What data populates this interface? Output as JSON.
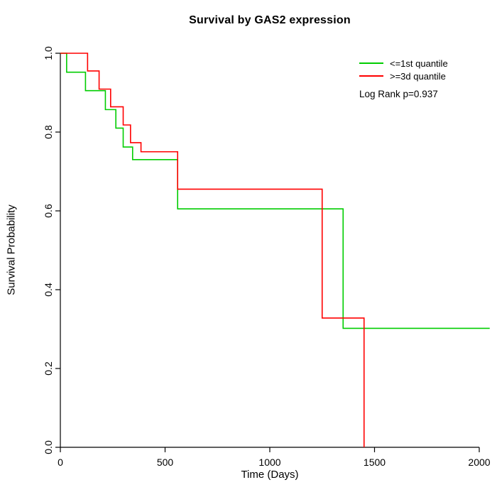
{
  "title": "Survival by GAS2 expression",
  "axes": {
    "xlabel": "Time (Days)",
    "ylabel": "Survival Probability"
  },
  "legend": {
    "items": [
      {
        "label": "<=1st quantile",
        "color": "#00CD00"
      },
      {
        "label": ">=3d quantile",
        "color": "#FF0000"
      }
    ],
    "note": "Log Rank p=0.937"
  },
  "chart_data": {
    "type": "line",
    "subtype": "kaplan-meier-step",
    "title": "Survival by GAS2 expression",
    "xlabel": "Time (Days)",
    "ylabel": "Survival Probability",
    "xlim": [
      0,
      2000
    ],
    "ylim": [
      0.0,
      1.0
    ],
    "x_ticks": [
      0,
      500,
      1000,
      1500,
      2000
    ],
    "y_ticks": [
      0.0,
      0.2,
      0.4,
      0.6,
      0.8,
      1.0
    ],
    "grid": false,
    "legend_position": "top-right",
    "annotation": "Log Rank p=0.937",
    "series": [
      {
        "name": "<=1st quantile",
        "color": "#00CD00",
        "steps": [
          [
            0,
            1.0
          ],
          [
            30,
            0.952
          ],
          [
            120,
            0.905
          ],
          [
            215,
            0.857
          ],
          [
            265,
            0.81
          ],
          [
            300,
            0.762
          ],
          [
            345,
            0.73
          ],
          [
            560,
            0.605
          ],
          [
            1350,
            0.302
          ],
          [
            2050,
            0.302
          ]
        ]
      },
      {
        "name": ">=3d quantile",
        "color": "#FF0000",
        "steps": [
          [
            0,
            1.0
          ],
          [
            130,
            0.955
          ],
          [
            185,
            0.909
          ],
          [
            240,
            0.864
          ],
          [
            300,
            0.818
          ],
          [
            335,
            0.773
          ],
          [
            385,
            0.75
          ],
          [
            560,
            0.655
          ],
          [
            1250,
            0.328
          ],
          [
            1450,
            0.0
          ]
        ]
      }
    ]
  }
}
